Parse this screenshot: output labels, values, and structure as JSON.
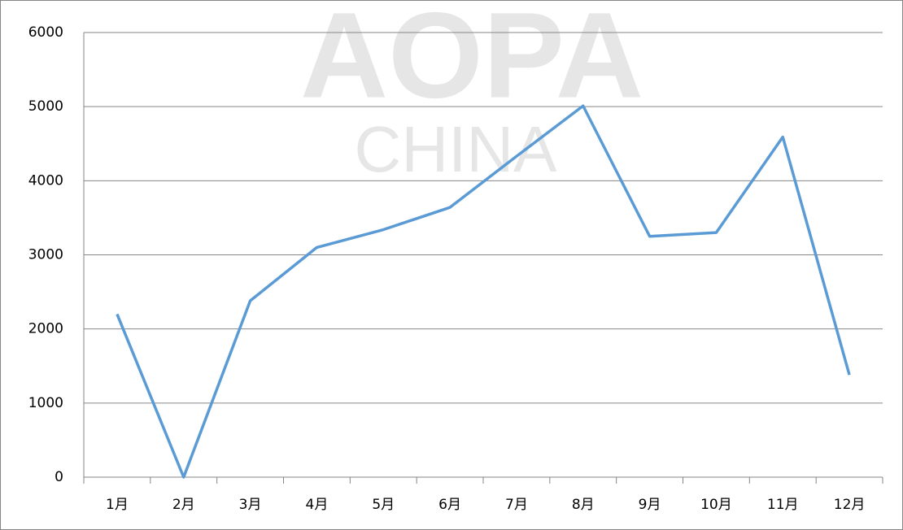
{
  "chart_data": {
    "type": "line",
    "watermark": [
      "AOPA",
      "CHINA"
    ],
    "categories": [
      "1月",
      "2月",
      "3月",
      "4月",
      "5月",
      "6月",
      "7月",
      "8月",
      "9月",
      "10月",
      "11月",
      "12月"
    ],
    "series": [
      {
        "color": "#5b9bd5",
        "values": [
          2200,
          0,
          2380,
          3100,
          3340,
          3640,
          4330,
          5010,
          3250,
          3300,
          4590,
          1380
        ]
      }
    ],
    "ylim": [
      0,
      6000
    ],
    "yticks": [
      0,
      1000,
      2000,
      3000,
      4000,
      5000,
      6000
    ],
    "grid": true
  }
}
